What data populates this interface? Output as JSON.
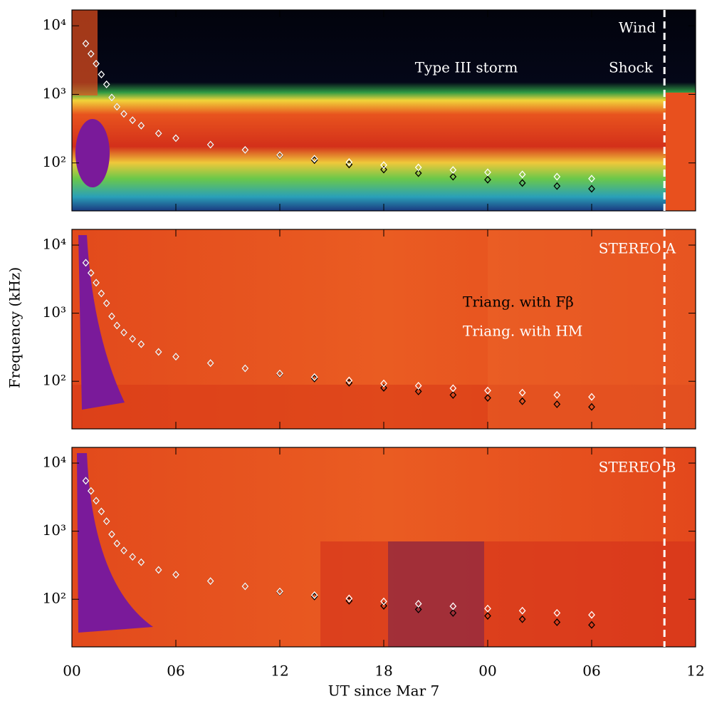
{
  "chart_data": [
    {
      "type": "scatter",
      "log_y": true,
      "xlim": [
        0,
        36
      ],
      "ylim": [
        20,
        17000
      ],
      "xticks": [
        0,
        6,
        12,
        18,
        24,
        30,
        36
      ],
      "yticks": [
        {
          "value": 100,
          "label": "10²"
        },
        {
          "value": 1000,
          "label": "10³"
        },
        {
          "value": 10000,
          "label": "10⁴"
        }
      ],
      "annotations": [
        "Wind",
        "Type III storm",
        "Shock"
      ],
      "vline": 34.2,
      "x": [
        0.8,
        1.1,
        1.4,
        1.7,
        2.0,
        2.3,
        2.6,
        3.0,
        3.5,
        4,
        5,
        6,
        8,
        10,
        12,
        14,
        16,
        18,
        20,
        22,
        24,
        26,
        28,
        30
      ],
      "series": [
        {
          "color": "#000000",
          "values": [
            5500,
            3900,
            2800,
            1950,
            1400,
            900,
            660,
            520,
            420,
            350,
            270,
            230,
            185,
            155,
            128,
            110,
            95,
            80,
            71,
            63,
            57,
            51,
            46,
            42
          ]
        },
        {
          "color": "#ffffff",
          "values": [
            5500,
            3900,
            2800,
            1950,
            1400,
            900,
            660,
            520,
            420,
            350,
            270,
            230,
            185,
            155,
            130,
            115,
            103,
            93,
            86,
            79,
            73,
            68,
            63,
            59
          ]
        }
      ]
    },
    {
      "type": "scatter",
      "log_y": true,
      "xlim": [
        0,
        36
      ],
      "ylim": [
        20,
        17000
      ],
      "xticks": [
        0,
        6,
        12,
        18,
        24,
        30,
        36
      ],
      "yticks": [
        {
          "value": 100,
          "label": "10²"
        },
        {
          "value": 1000,
          "label": "10³"
        },
        {
          "value": 10000,
          "label": "10⁴"
        }
      ],
      "y_label": "Frequency (kHz)",
      "annotations": [
        "STEREO A"
      ],
      "vline": 34.2,
      "x": [
        0.8,
        1.1,
        1.4,
        1.7,
        2.0,
        2.3,
        2.6,
        3.0,
        3.5,
        4,
        5,
        6,
        8,
        10,
        12,
        14,
        16,
        18,
        20,
        22,
        24,
        26,
        28,
        30
      ],
      "series": [
        {
          "name": "Triang. with Fβ",
          "color": "#000000",
          "values": [
            5500,
            3900,
            2800,
            1950,
            1400,
            900,
            660,
            520,
            420,
            350,
            270,
            230,
            185,
            155,
            128,
            110,
            95,
            80,
            71,
            63,
            57,
            51,
            46,
            42
          ]
        },
        {
          "name": "Triang. with HM",
          "color": "#ffffff",
          "values": [
            5500,
            3900,
            2800,
            1950,
            1400,
            900,
            660,
            520,
            420,
            350,
            270,
            230,
            185,
            155,
            130,
            115,
            103,
            93,
            86,
            79,
            73,
            68,
            63,
            59
          ]
        }
      ]
    },
    {
      "type": "scatter",
      "log_y": true,
      "xlim": [
        0,
        36
      ],
      "ylim": [
        20,
        17000
      ],
      "xticks": [
        {
          "value": 0,
          "label": "00"
        },
        {
          "value": 6,
          "label": "06"
        },
        12,
        18,
        {
          "value": 24,
          "label": "00"
        },
        {
          "value": 30,
          "label": "06"
        },
        {
          "value": 36,
          "label": "12"
        }
      ],
      "yticks": [
        {
          "value": 100,
          "label": "10²"
        },
        {
          "value": 1000,
          "label": "10³"
        },
        {
          "value": 10000,
          "label": "10⁴"
        }
      ],
      "x_label": "UT since Mar 7",
      "annotations": [
        "STEREO B"
      ],
      "vline": 34.2,
      "x": [
        0.8,
        1.1,
        1.4,
        1.7,
        2.0,
        2.3,
        2.6,
        3.0,
        3.5,
        4,
        5,
        6,
        8,
        10,
        12,
        14,
        16,
        18,
        20,
        22,
        24,
        26,
        28,
        30
      ],
      "series": [
        {
          "color": "#000000",
          "values": [
            5500,
            3900,
            2800,
            1950,
            1400,
            900,
            660,
            520,
            420,
            350,
            270,
            230,
            185,
            155,
            128,
            110,
            95,
            80,
            71,
            63,
            57,
            51,
            46,
            42
          ]
        },
        {
          "color": "#ffffff",
          "values": [
            5500,
            3900,
            2800,
            1950,
            1400,
            900,
            660,
            520,
            420,
            350,
            270,
            230,
            185,
            155,
            130,
            115,
            103,
            93,
            86,
            79,
            73,
            68,
            63,
            59
          ]
        }
      ]
    }
  ]
}
